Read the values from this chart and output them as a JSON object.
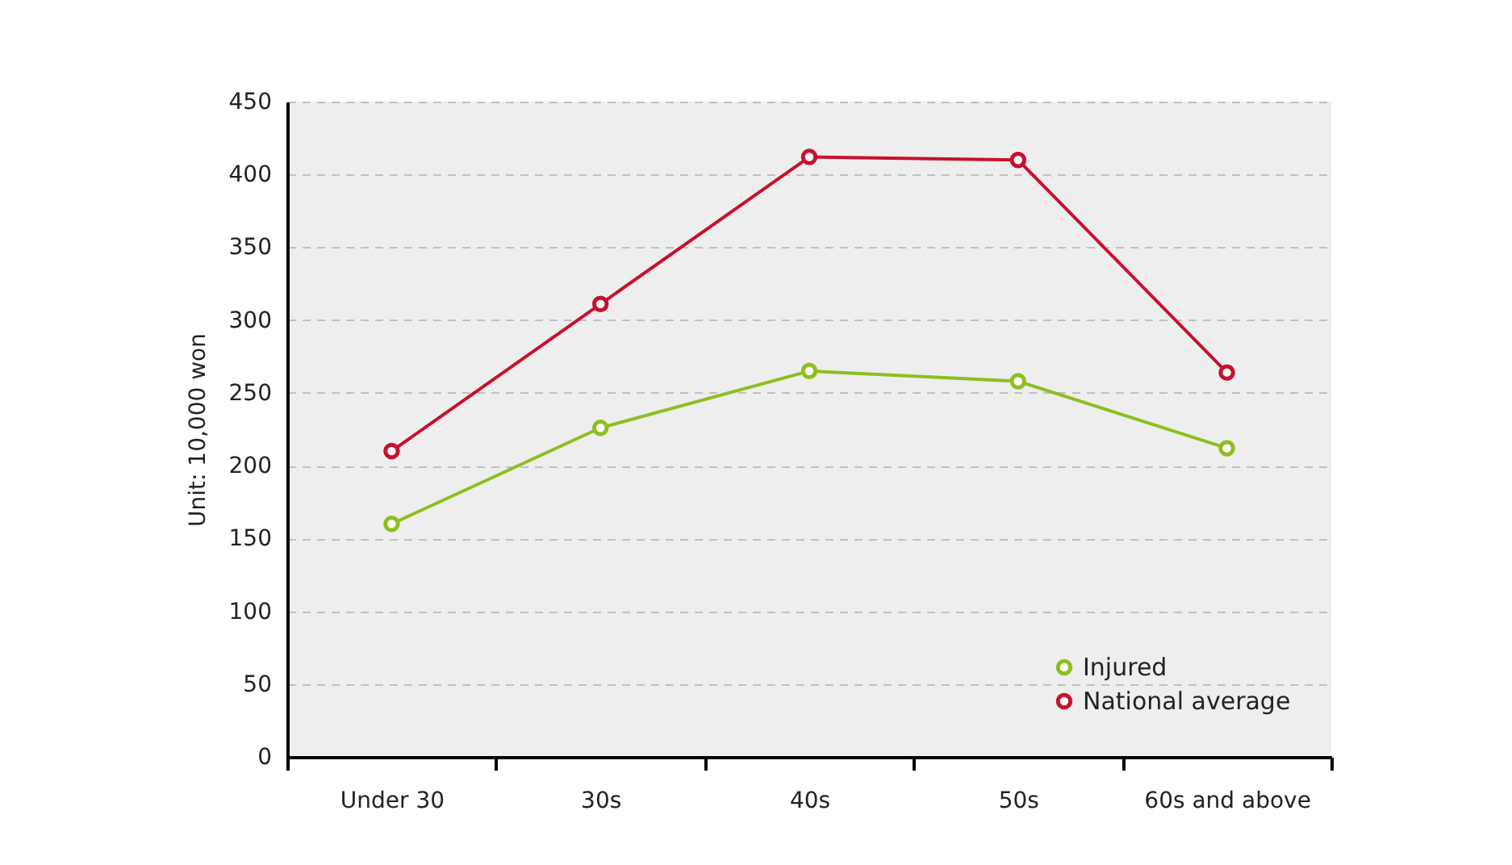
{
  "chart_data": {
    "type": "line",
    "ylabel": "Unit: 10,000 won",
    "categories": [
      "Under 30",
      "30s",
      "40s",
      "50s",
      "60s and above"
    ],
    "series": [
      {
        "name": "Injured",
        "color": "#8cbf1f",
        "values": [
          160,
          226,
          265,
          258,
          212
        ]
      },
      {
        "name": "National average",
        "color": "#c8102e",
        "values": [
          210,
          311,
          412,
          410,
          264
        ]
      }
    ],
    "ylim": [
      0,
      450
    ],
    "yticks": [
      0,
      50,
      100,
      150,
      200,
      250,
      300,
      350,
      400,
      450
    ],
    "grid": "y",
    "legend": "bottom right",
    "marker": "circle",
    "line_style": "solid"
  }
}
